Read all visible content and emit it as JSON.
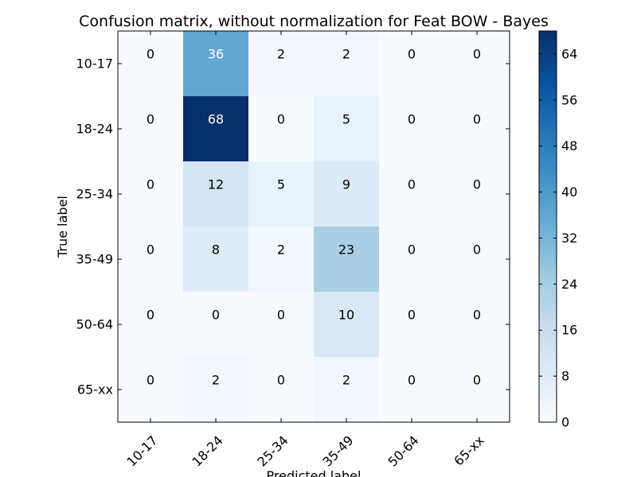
{
  "chart_data": {
    "type": "heatmap",
    "title": "Confusion matrix, without normalization for Feat BOW - Bayes",
    "xlabel": "Predicted label",
    "ylabel": "True label",
    "x_categories": [
      "10-17",
      "18-24",
      "25-34",
      "35-49",
      "50-64",
      "65-xx"
    ],
    "y_categories": [
      "10-17",
      "18-24",
      "25-34",
      "35-49",
      "50-64",
      "65-xx"
    ],
    "values": [
      [
        0,
        36,
        2,
        2,
        0,
        0
      ],
      [
        0,
        68,
        0,
        5,
        0,
        0
      ],
      [
        0,
        12,
        5,
        9,
        0,
        0
      ],
      [
        0,
        8,
        2,
        23,
        0,
        0
      ],
      [
        0,
        0,
        0,
        10,
        0,
        0
      ],
      [
        0,
        2,
        0,
        2,
        0,
        0
      ]
    ],
    "colorbar": {
      "min": 0,
      "max": 68,
      "ticks": [
        0,
        8,
        16,
        24,
        32,
        40,
        48,
        56,
        64
      ]
    },
    "colormap": "Blues",
    "colors": {
      "low": "#f7fbff",
      "high": "#08306b"
    }
  }
}
